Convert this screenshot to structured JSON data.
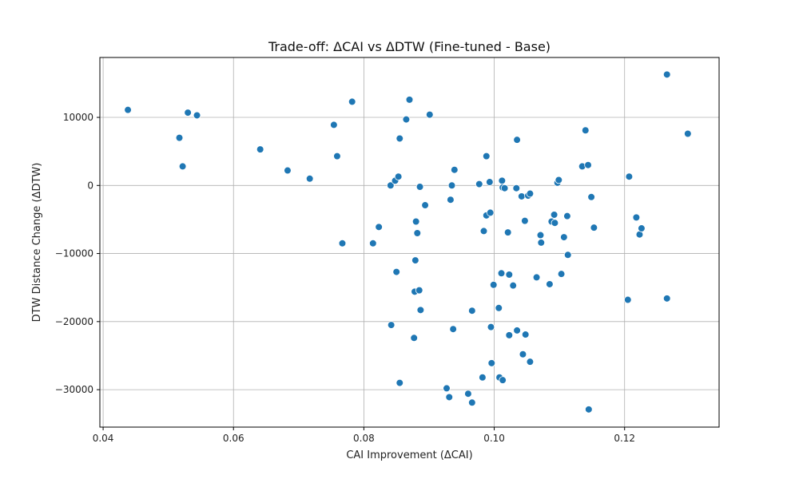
{
  "chart_data": {
    "type": "scatter",
    "title": "Trade-off: ΔCAI vs ΔDTW (Fine-tuned - Base)",
    "xlabel": "CAI Improvement (ΔCAI)",
    "ylabel": "DTW Distance Change (ΔDTW)",
    "xlim": [
      0.0395,
      0.1345
    ],
    "ylim": [
      -35500,
      18800
    ],
    "xticks": [
      0.04,
      0.06,
      0.08,
      0.1,
      0.12
    ],
    "xtick_labels": [
      "0.04",
      "0.06",
      "0.08",
      "0.10",
      "0.12"
    ],
    "yticks": [
      -30000,
      -20000,
      -10000,
      0,
      10000
    ],
    "ytick_labels": [
      "−30000",
      "−20000",
      "−10000",
      "0",
      "10000"
    ],
    "grid": true,
    "series": [
      {
        "color": "#1f77b4",
        "points": [
          {
            "x": 0.0438,
            "y": 11100
          },
          {
            "x": 0.053,
            "y": 10700
          },
          {
            "x": 0.0544,
            "y": 10300
          },
          {
            "x": 0.0517,
            "y": 7000
          },
          {
            "x": 0.0522,
            "y": 2800
          },
          {
            "x": 0.0641,
            "y": 5300
          },
          {
            "x": 0.0683,
            "y": 2200
          },
          {
            "x": 0.0717,
            "y": 1000
          },
          {
            "x": 0.0754,
            "y": 8900
          },
          {
            "x": 0.0759,
            "y": 4300
          },
          {
            "x": 0.0782,
            "y": 12300
          },
          {
            "x": 0.0767,
            "y": -8500
          },
          {
            "x": 0.0814,
            "y": -8500
          },
          {
            "x": 0.0823,
            "y": -6100
          },
          {
            "x": 0.0841,
            "y": 0
          },
          {
            "x": 0.0848,
            "y": 700
          },
          {
            "x": 0.0853,
            "y": 1300
          },
          {
            "x": 0.085,
            "y": -12700
          },
          {
            "x": 0.0842,
            "y": -20500
          },
          {
            "x": 0.0855,
            "y": 6900
          },
          {
            "x": 0.0865,
            "y": 9700
          },
          {
            "x": 0.087,
            "y": 12600
          },
          {
            "x": 0.0855,
            "y": -29000
          },
          {
            "x": 0.0877,
            "y": -22400
          },
          {
            "x": 0.0878,
            "y": -15600
          },
          {
            "x": 0.0879,
            "y": -11000
          },
          {
            "x": 0.088,
            "y": -5300
          },
          {
            "x": 0.0882,
            "y": -7000
          },
          {
            "x": 0.0885,
            "y": -15400
          },
          {
            "x": 0.0887,
            "y": -18300
          },
          {
            "x": 0.0886,
            "y": -200
          },
          {
            "x": 0.0894,
            "y": -2900
          },
          {
            "x": 0.0901,
            "y": 10400
          },
          {
            "x": 0.0933,
            "y": -2100
          },
          {
            "x": 0.0935,
            "y": 0
          },
          {
            "x": 0.0937,
            "y": -21100
          },
          {
            "x": 0.0939,
            "y": 2300
          },
          {
            "x": 0.0927,
            "y": -29800
          },
          {
            "x": 0.0931,
            "y": -31100
          },
          {
            "x": 0.096,
            "y": -30600
          },
          {
            "x": 0.0966,
            "y": -31900
          },
          {
            "x": 0.0966,
            "y": -18400
          },
          {
            "x": 0.0977,
            "y": 200
          },
          {
            "x": 0.0982,
            "y": -28200
          },
          {
            "x": 0.0984,
            "y": -6700
          },
          {
            "x": 0.0988,
            "y": -4400
          },
          {
            "x": 0.0988,
            "y": 4300
          },
          {
            "x": 0.0993,
            "y": 500
          },
          {
            "x": 0.0994,
            "y": -4000
          },
          {
            "x": 0.0995,
            "y": -20800
          },
          {
            "x": 0.0996,
            "y": -26100
          },
          {
            "x": 0.0999,
            "y": -14600
          },
          {
            "x": 0.1007,
            "y": -18000
          },
          {
            "x": 0.1008,
            "y": -28200
          },
          {
            "x": 0.1011,
            "y": -12900
          },
          {
            "x": 0.1012,
            "y": 700
          },
          {
            "x": 0.1013,
            "y": -300
          },
          {
            "x": 0.1013,
            "y": -28600
          },
          {
            "x": 0.1016,
            "y": -400
          },
          {
            "x": 0.1021,
            "y": -6900
          },
          {
            "x": 0.1023,
            "y": -13100
          },
          {
            "x": 0.1023,
            "y": -22000
          },
          {
            "x": 0.1029,
            "y": -14700
          },
          {
            "x": 0.1034,
            "y": -400
          },
          {
            "x": 0.1035,
            "y": 6700
          },
          {
            "x": 0.1035,
            "y": -21300
          },
          {
            "x": 0.1042,
            "y": -1600
          },
          {
            "x": 0.1044,
            "y": -24800
          },
          {
            "x": 0.1047,
            "y": -5200
          },
          {
            "x": 0.1048,
            "y": -21900
          },
          {
            "x": 0.1052,
            "y": -1500
          },
          {
            "x": 0.1055,
            "y": -1200
          },
          {
            "x": 0.1055,
            "y": -25900
          },
          {
            "x": 0.1065,
            "y": -13500
          },
          {
            "x": 0.1071,
            "y": -7300
          },
          {
            "x": 0.1072,
            "y": -8400
          },
          {
            "x": 0.1085,
            "y": -14500
          },
          {
            "x": 0.1088,
            "y": -5300
          },
          {
            "x": 0.1092,
            "y": -4300
          },
          {
            "x": 0.1093,
            "y": -5500
          },
          {
            "x": 0.1097,
            "y": 400
          },
          {
            "x": 0.1099,
            "y": 800
          },
          {
            "x": 0.1103,
            "y": -13000
          },
          {
            "x": 0.1107,
            "y": -7600
          },
          {
            "x": 0.1112,
            "y": -4500
          },
          {
            "x": 0.1113,
            "y": -10200
          },
          {
            "x": 0.1135,
            "y": 2800
          },
          {
            "x": 0.114,
            "y": 8100
          },
          {
            "x": 0.1144,
            "y": 3000
          },
          {
            "x": 0.1145,
            "y": -32900
          },
          {
            "x": 0.1149,
            "y": -1700
          },
          {
            "x": 0.1153,
            "y": -6200
          },
          {
            "x": 0.1205,
            "y": -16800
          },
          {
            "x": 0.1207,
            "y": 1300
          },
          {
            "x": 0.1218,
            "y": -4700
          },
          {
            "x": 0.1223,
            "y": -7200
          },
          {
            "x": 0.1226,
            "y": -6300
          },
          {
            "x": 0.1265,
            "y": 16300
          },
          {
            "x": 0.1265,
            "y": -16600
          },
          {
            "x": 0.1297,
            "y": 7600
          }
        ]
      }
    ]
  }
}
